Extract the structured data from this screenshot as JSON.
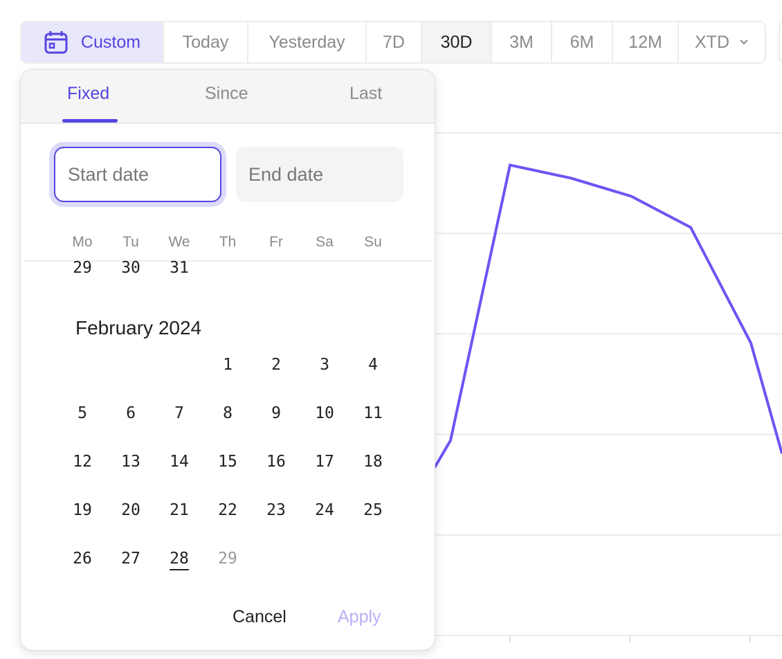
{
  "toolbar": {
    "custom": {
      "label": "Custom",
      "icon": "calendar-icon"
    },
    "ranges": [
      "Today",
      "Yesterday",
      "7D",
      "30D",
      "3M",
      "6M",
      "12M"
    ],
    "xtd": {
      "label": "XTD",
      "icon": "chevron-down-icon"
    },
    "selected": "30D",
    "accent": "#5445e0"
  },
  "popover": {
    "tabs": [
      "Fixed",
      "Since",
      "Last"
    ],
    "active_tab": "Fixed",
    "start_date": {
      "value": "",
      "placeholder": "Start date"
    },
    "end_date": {
      "value": "",
      "placeholder": "End date"
    },
    "weekdays": [
      "Mo",
      "Tu",
      "We",
      "Th",
      "Fr",
      "Sa",
      "Su"
    ],
    "prev_month_tail": [
      "29",
      "30",
      "31"
    ],
    "month_title": "February 2024",
    "weeks": [
      [
        "",
        "",
        "",
        "1",
        "2",
        "3",
        "4"
      ],
      [
        "5",
        "6",
        "7",
        "8",
        "9",
        "10",
        "11"
      ],
      [
        "12",
        "13",
        "14",
        "15",
        "16",
        "17",
        "18"
      ],
      [
        "19",
        "20",
        "21",
        "22",
        "23",
        "24",
        "25"
      ],
      [
        "26",
        "27",
        "28",
        "29",
        "",
        "",
        ""
      ]
    ],
    "today": "28",
    "disabled": [
      "29"
    ],
    "cancel": "Cancel",
    "apply": "Apply"
  },
  "chart_data": {
    "type": "line",
    "grid": true,
    "color": "#6c55f5",
    "series": [
      {
        "values": [
          1.67,
          1.94,
          4.68,
          4.55,
          4.37,
          4.06,
          2.91,
          1.81
        ]
      }
    ]
  }
}
